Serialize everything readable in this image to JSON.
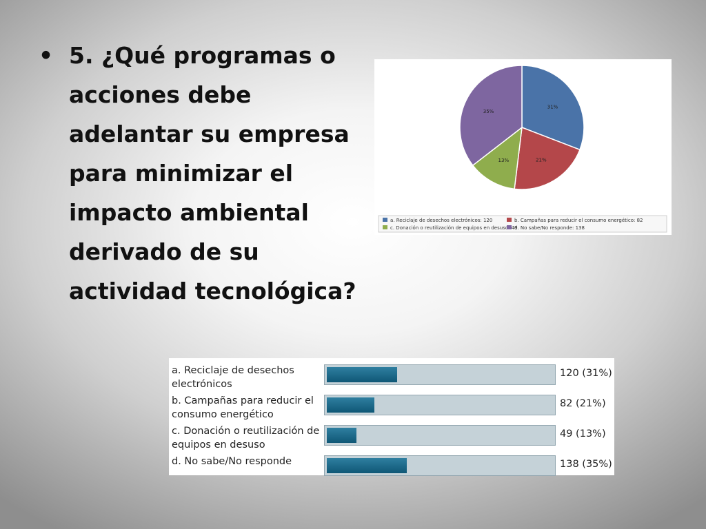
{
  "slide": {
    "bullet": "•",
    "question": "5. ¿Qué programas o acciones debe adelantar su empresa para minimizar el impacto ambiental derivado de su actividad tecnológica?"
  },
  "colors": {
    "a": "#4a73a8",
    "b": "#b4474a",
    "c": "#8fad4d",
    "d": "#7e66a0"
  },
  "chart_data": [
    {
      "type": "pie",
      "categories": [
        "a. Reciclaje de desechos electrónicos: 120",
        "b. Campañas para reducir el consumo energético: 82",
        "c. Donación o reutilización de equipos en desuso: 49",
        "d. No sabe/No responde: 138"
      ],
      "values": [
        120,
        82,
        49,
        138
      ],
      "slice_labels": [
        "31%",
        "21%",
        "13%",
        "35%"
      ],
      "legend_placement": "bottom"
    },
    {
      "type": "bar",
      "orientation": "horizontal",
      "categories": [
        "a. Reciclaje de desechos electrónicos",
        "b. Campañas para reducir el consumo energético",
        "c. Donación o reutilización de equipos en desuso",
        "d. No sabe/No responde"
      ],
      "values": [
        120,
        82,
        49,
        138
      ],
      "percents": [
        31,
        21,
        13,
        35
      ],
      "value_labels": [
        "120 (31%)",
        "82 (21%)",
        "49 (13%)",
        "138 (35%)"
      ]
    }
  ]
}
